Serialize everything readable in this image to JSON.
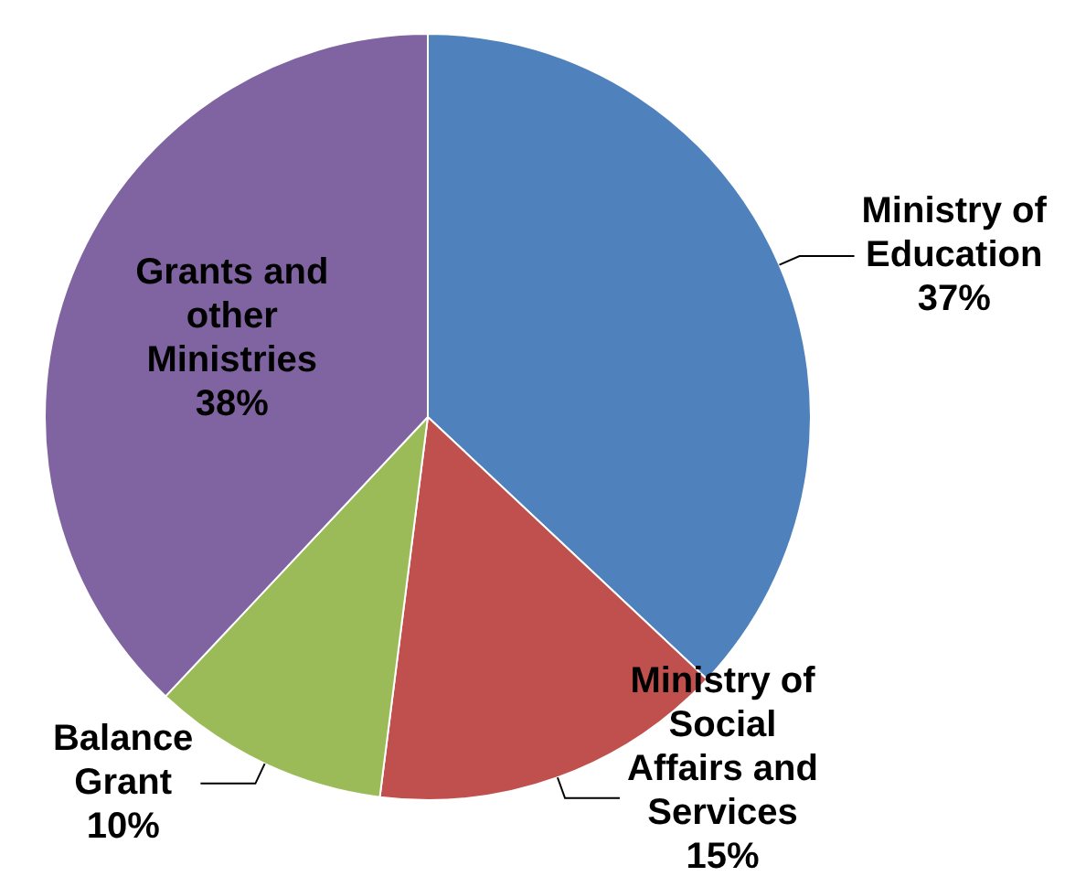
{
  "chart_data": {
    "type": "pie",
    "categories": [
      "Ministry of Education",
      "Ministry of Social Affairs and Services",
      "Balance Grant",
      "Grants and other Ministries"
    ],
    "values": [
      37,
      15,
      10,
      38
    ],
    "colors": [
      "#4f81bd",
      "#c0504d",
      "#9bbb59",
      "#8064a2"
    ],
    "value_labels": [
      "37%",
      "15%",
      "10%",
      "38%"
    ],
    "legend": false
  }
}
